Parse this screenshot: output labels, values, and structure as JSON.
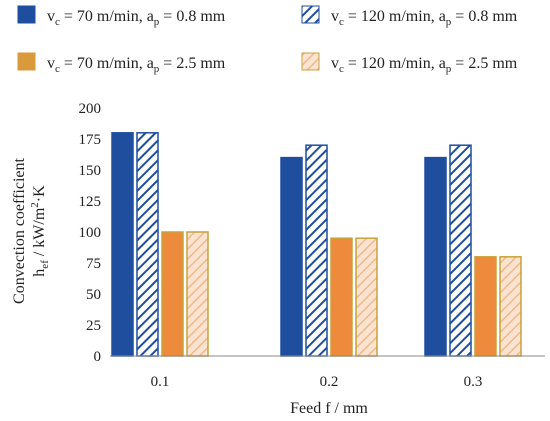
{
  "chart_data": {
    "type": "bar",
    "categories": [
      "0.1",
      "0.2",
      "0.3"
    ],
    "series": [
      {
        "name": "vc = 70 m/min, ap = 0.8 mm",
        "values": [
          180,
          160,
          160
        ],
        "style": "solid",
        "color": "#1f4e9e"
      },
      {
        "name": "vc = 120 m/min, ap = 0.8 mm",
        "values": [
          180,
          170,
          170
        ],
        "style": "hatched",
        "color": "#1f4e9e"
      },
      {
        "name": "vc = 70 m/min, ap = 2.5 mm",
        "values": [
          100,
          95,
          80
        ],
        "style": "solid",
        "color": "#ee8a3c",
        "edge_color": "#c9a23a"
      },
      {
        "name": "vc = 120 m/min, ap = 2.5 mm",
        "values": [
          100,
          95,
          80
        ],
        "style": "hatched",
        "color": "#f4c8a8",
        "edge_color": "#c9a23a"
      }
    ],
    "y_ticks": [
      "0",
      "25",
      "50",
      "75",
      "100",
      "125",
      "150",
      "175",
      "200"
    ],
    "ylim": [
      0,
      200
    ],
    "grid": false,
    "legend_position": "top",
    "legend": [
      {
        "pre": "v",
        "sub": "c",
        "mid": " = 70 m/min, a",
        "sub2": "p",
        "post": " = 0.8 mm"
      },
      {
        "pre": "v",
        "sub": "c",
        "mid": " = 120 m/min, a",
        "sub2": "p",
        "post": " = 0.8 mm"
      },
      {
        "pre": "v",
        "sub": "c",
        "mid": " = 70 m/min, a",
        "sub2": "p",
        "post": " = 2.5 mm"
      },
      {
        "pre": "v",
        "sub": "c",
        "mid": " = 120 m/min, a",
        "sub2": "p",
        "post": " = 2.5 mm"
      }
    ],
    "xlabel": "Feed f / mm",
    "ylabel_line1": "Convection coefficient",
    "ylabel_line2": {
      "pre": "h",
      "sub": "ef",
      "mid": " / kW/m",
      "sup": "2",
      "post": "·K"
    }
  }
}
